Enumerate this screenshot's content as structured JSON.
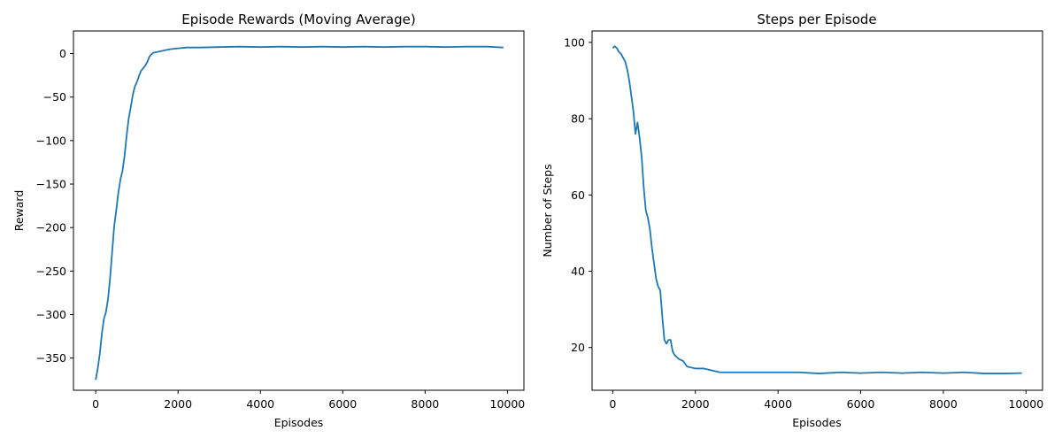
{
  "chart_data": [
    {
      "type": "line",
      "title": "Episode Rewards (Moving Average)",
      "xlabel": "Episodes",
      "ylabel": "Reward",
      "xlim": [
        -540,
        10400
      ],
      "ylim": [
        -387,
        26
      ],
      "xticks": [
        0,
        2000,
        4000,
        6000,
        8000,
        10000
      ],
      "xtick_labels": [
        "0",
        "2000",
        "4000",
        "6000",
        "8000",
        "10000"
      ],
      "yticks": [
        -350,
        -300,
        -250,
        -200,
        -150,
        -100,
        -50,
        0
      ],
      "ytick_labels": [
        "−350",
        "−300",
        "−250",
        "−200",
        "−150",
        "−100",
        "−50",
        "0"
      ],
      "grid": false,
      "color": "#1f77b4",
      "series": [
        {
          "x": [
            0,
            50,
            100,
            150,
            200,
            250,
            300,
            350,
            400,
            450,
            500,
            550,
            600,
            650,
            700,
            750,
            800,
            850,
            900,
            950,
            1000,
            1050,
            1100,
            1150,
            1200,
            1250,
            1300,
            1350,
            1400,
            1500,
            1600,
            1700,
            1800,
            2000,
            2200,
            2500,
            3000,
            3500,
            4000,
            4500,
            5000,
            5500,
            6000,
            6500,
            7000,
            7500,
            8000,
            8500,
            9000,
            9500,
            9900
          ],
          "y": [
            -375,
            -362,
            -345,
            -322,
            -305,
            -297,
            -282,
            -258,
            -228,
            -198,
            -180,
            -160,
            -145,
            -135,
            -118,
            -95,
            -75,
            -62,
            -48,
            -38,
            -33,
            -26,
            -20,
            -17,
            -14,
            -10,
            -4,
            -1,
            1,
            2,
            3,
            4,
            5,
            6,
            7,
            7,
            7.5,
            8,
            7.5,
            8,
            7.5,
            8,
            7.5,
            8,
            7.5,
            8,
            8,
            7.5,
            8,
            8,
            7
          ]
        }
      ]
    },
    {
      "type": "line",
      "title": "Steps per Episode",
      "xlabel": "Episodes",
      "ylabel": "Number of Steps",
      "xlim": [
        -500,
        10400
      ],
      "ylim": [
        8.8,
        103
      ],
      "xticks": [
        0,
        2000,
        4000,
        6000,
        8000,
        10000
      ],
      "xtick_labels": [
        "0",
        "2000",
        "4000",
        "6000",
        "8000",
        "10000"
      ],
      "yticks": [
        20,
        40,
        60,
        80,
        100
      ],
      "ytick_labels": [
        "20",
        "40",
        "60",
        "80",
        "100"
      ],
      "grid": false,
      "color": "#1f77b4",
      "series": [
        {
          "x": [
            0,
            50,
            100,
            150,
            200,
            250,
            300,
            350,
            400,
            450,
            500,
            550,
            600,
            650,
            700,
            750,
            800,
            850,
            900,
            950,
            1000,
            1050,
            1100,
            1150,
            1200,
            1250,
            1300,
            1350,
            1400,
            1450,
            1500,
            1550,
            1600,
            1700,
            1800,
            2000,
            2200,
            2400,
            2600,
            2800,
            3000,
            3500,
            4000,
            4500,
            5000,
            5500,
            6000,
            6500,
            7000,
            7500,
            8000,
            8500,
            9000,
            9500,
            9900
          ],
          "y": [
            98.5,
            99,
            98.5,
            97.5,
            97,
            96,
            95,
            93,
            90,
            86,
            82,
            76,
            79,
            75,
            70,
            62,
            56,
            54,
            51,
            46,
            42,
            38,
            36,
            35,
            28,
            22,
            21,
            22,
            22,
            19,
            18,
            17.5,
            17,
            16.5,
            15,
            14.5,
            14.5,
            14,
            13.5,
            13.5,
            13.5,
            13.5,
            13.5,
            13.5,
            13.2,
            13.5,
            13.3,
            13.5,
            13.3,
            13.5,
            13.3,
            13.5,
            13.2,
            13.2,
            13.3
          ]
        }
      ]
    }
  ]
}
